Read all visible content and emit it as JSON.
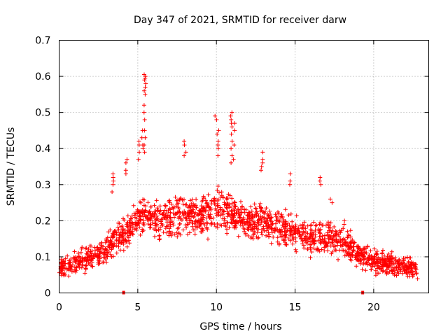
{
  "chart_data": {
    "type": "scatter",
    "title": "Day 347 of 2021, SRMTID for receiver darw",
    "xlabel": "GPS time / hours",
    "ylabel": "SRMTID / TECUs",
    "xlim": [
      0,
      23.5
    ],
    "ylim": [
      0,
      0.7
    ],
    "grid": true,
    "x_ticks": [
      0,
      5,
      10,
      15,
      20
    ],
    "y_ticks": [
      0,
      0.1,
      0.2,
      0.3,
      0.4,
      0.5,
      0.6,
      0.7
    ],
    "x_tick_labels": [
      "0",
      "5",
      "10",
      "15",
      "20"
    ],
    "y_tick_labels": [
      "0",
      "0.1",
      "0.2",
      "0.3",
      "0.4",
      "0.5",
      "0.6",
      "0.7"
    ],
    "marker": "+",
    "color": "#ff0000",
    "gap_markers_x": [
      4.1,
      19.3
    ],
    "series": [
      {
        "name": "SRMTID",
        "trend": [
          [
            0.0,
            0.07
          ],
          [
            1.0,
            0.08
          ],
          [
            2.0,
            0.1
          ],
          [
            3.0,
            0.12
          ],
          [
            3.5,
            0.15
          ],
          [
            4.0,
            0.16
          ],
          [
            4.5,
            0.18
          ],
          [
            5.0,
            0.2
          ],
          [
            5.5,
            0.22
          ],
          [
            6.0,
            0.2
          ],
          [
            7.0,
            0.21
          ],
          [
            8.0,
            0.22
          ],
          [
            9.0,
            0.21
          ],
          [
            10.0,
            0.23
          ],
          [
            11.0,
            0.22
          ],
          [
            12.0,
            0.19
          ],
          [
            13.0,
            0.2
          ],
          [
            14.0,
            0.18
          ],
          [
            15.0,
            0.17
          ],
          [
            16.0,
            0.15
          ],
          [
            17.0,
            0.16
          ],
          [
            18.0,
            0.14
          ],
          [
            19.0,
            0.11
          ],
          [
            20.0,
            0.09
          ],
          [
            21.0,
            0.08
          ],
          [
            22.0,
            0.07
          ],
          [
            22.8,
            0.07
          ]
        ],
        "x_range": [
          0,
          22.8
        ],
        "spread": 0.07,
        "point_count": 1800,
        "seed": 347,
        "peaks": [
          {
            "x": 5.45,
            "values": [
              0.605,
              0.6,
              0.595,
              0.59,
              0.58,
              0.57,
              0.56,
              0.55,
              0.52,
              0.5,
              0.48,
              0.45,
              0.43,
              0.41,
              0.39
            ]
          },
          {
            "x": 5.3,
            "values": [
              0.45,
              0.43,
              0.41,
              0.4
            ]
          },
          {
            "x": 5.1,
            "values": [
              0.42,
              0.41,
              0.39,
              0.37
            ]
          },
          {
            "x": 3.4,
            "values": [
              0.33,
              0.32,
              0.31,
              0.3,
              0.28
            ]
          },
          {
            "x": 4.3,
            "values": [
              0.37,
              0.36,
              0.34,
              0.33
            ]
          },
          {
            "x": 8.0,
            "values": [
              0.42,
              0.41,
              0.39,
              0.38
            ]
          },
          {
            "x": 9.95,
            "values": [
              0.49,
              0.48
            ]
          },
          {
            "x": 10.1,
            "values": [
              0.45,
              0.44,
              0.42,
              0.41,
              0.4,
              0.38
            ]
          },
          {
            "x": 10.95,
            "values": [
              0.5,
              0.49,
              0.48,
              0.47,
              0.46,
              0.44,
              0.42,
              0.4,
              0.38,
              0.36
            ]
          },
          {
            "x": 11.1,
            "values": [
              0.47,
              0.45,
              0.41,
              0.37
            ]
          },
          {
            "x": 12.9,
            "values": [
              0.39,
              0.37,
              0.36,
              0.35,
              0.34
            ]
          },
          {
            "x": 14.7,
            "values": [
              0.33,
              0.31,
              0.3
            ]
          },
          {
            "x": 16.6,
            "values": [
              0.32,
              0.31,
              0.3
            ]
          },
          {
            "x": 17.3,
            "values": [
              0.26,
              0.25
            ]
          },
          {
            "x": 18.1,
            "values": [
              0.2,
              0.19
            ]
          }
        ]
      }
    ]
  }
}
